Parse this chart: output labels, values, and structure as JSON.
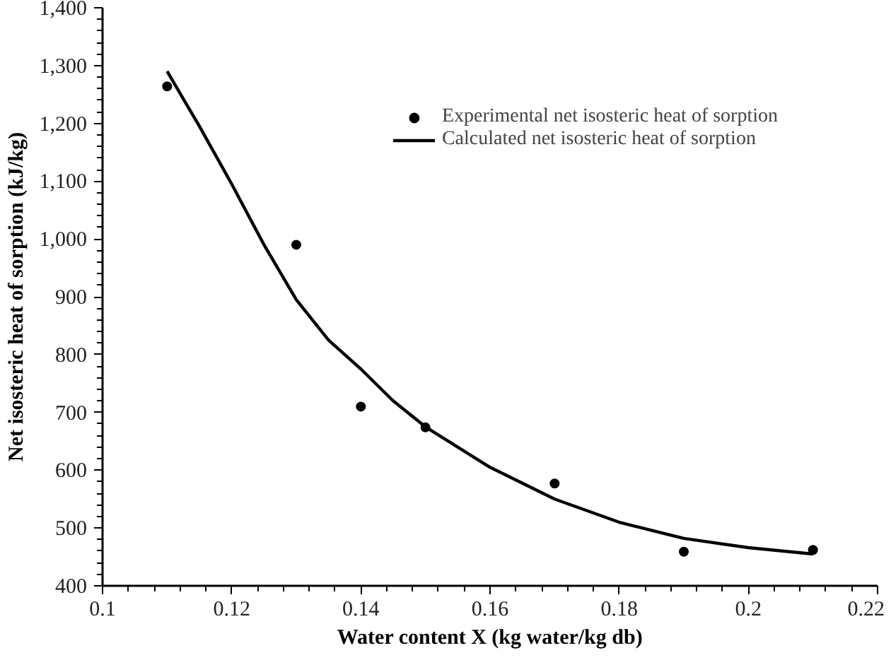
{
  "chart_data": {
    "type": "scatter",
    "xlabel": "Water content X (kg water/kg db)",
    "ylabel": "Net isosteric heat of sorption (kJ/kg)",
    "xlim": [
      0.1,
      0.22
    ],
    "xticks": [
      0.1,
      0.12,
      0.14,
      0.16,
      0.18,
      0.2,
      0.22
    ],
    "ylim": [
      400,
      1400
    ],
    "yticks": [
      400,
      500,
      600,
      700,
      800,
      900,
      {
        "value": 1000,
        "label": "1,000"
      },
      {
        "value": 1100,
        "label": "1,100"
      },
      {
        "value": 1200,
        "label": "1,200"
      },
      {
        "value": 1300,
        "label": "1,300"
      },
      {
        "value": 1400,
        "label": "1,400"
      }
    ],
    "grid": false,
    "legend": "top right",
    "series": [
      {
        "name": "Experimental net isosteric heat of sorption",
        "marker": "circle",
        "color": "#000000",
        "x": [
          0.11,
          0.13,
          0.14,
          0.15,
          0.17,
          0.19,
          0.21
        ],
        "values": [
          1264,
          990,
          710,
          674,
          577,
          459,
          462
        ]
      },
      {
        "name": "Calculated net isosteric heat of sorption",
        "type": "line",
        "line_style": "solid",
        "color": "#000000",
        "x": [
          0.11,
          0.115,
          0.12,
          0.125,
          0.13,
          0.135,
          0.14,
          0.145,
          0.15,
          0.16,
          0.17,
          0.18,
          0.19,
          0.2,
          0.21
        ],
        "values": [
          1290,
          1195,
          1095,
          990,
          895,
          825,
          775,
          720,
          675,
          605,
          550,
          510,
          482,
          466,
          455
        ]
      }
    ]
  }
}
